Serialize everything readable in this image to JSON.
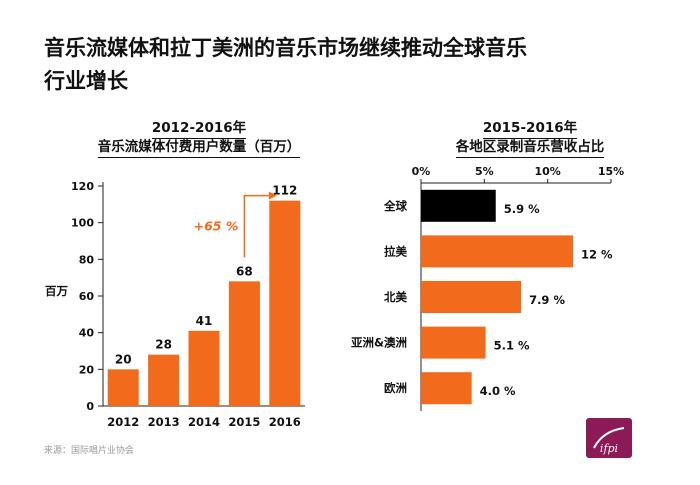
{
  "title_lines": [
    "音乐流媒体和拉丁美洲的音乐市场继续推动全球音乐",
    "行业增长"
  ],
  "source": "来源：国际唱片业协会",
  "logo_text": "ifpi",
  "colors": {
    "orange": "#f26a1b",
    "black": "#000000"
  },
  "chart_data": [
    {
      "type": "bar",
      "title": "2012-2016年",
      "subtitle": "音乐流媒体付费用户数量（百万）",
      "ylabel": "百万",
      "categories": [
        "2012",
        "2013",
        "2014",
        "2015",
        "2016"
      ],
      "values": [
        20,
        28,
        41,
        68,
        112
      ],
      "value_labels": [
        "20",
        "28",
        "41",
        "68",
        "112"
      ],
      "yticks": [
        0,
        20,
        40,
        60,
        80,
        100,
        120
      ],
      "ylim": [
        0,
        120
      ],
      "grid": false,
      "annotation": {
        "text": "+65 %",
        "from": "2015",
        "to": "2016"
      }
    },
    {
      "type": "bar",
      "orientation": "horizontal",
      "title": "2015-2016年",
      "subtitle": "各地区录制音乐营收占比",
      "categories": [
        "全球",
        "拉美",
        "北美",
        "亚洲&澳洲",
        "欧洲"
      ],
      "values": [
        5.9,
        12,
        7.9,
        5.1,
        4.0
      ],
      "value_labels": [
        "5.9 %",
        "12 %",
        "7.9 %",
        "5.1 %",
        "4.0 %"
      ],
      "highlight": "全球",
      "xticks": [
        "0%",
        "5%",
        "10%",
        "15%"
      ],
      "xlim": [
        0,
        15
      ],
      "grid": false
    }
  ]
}
